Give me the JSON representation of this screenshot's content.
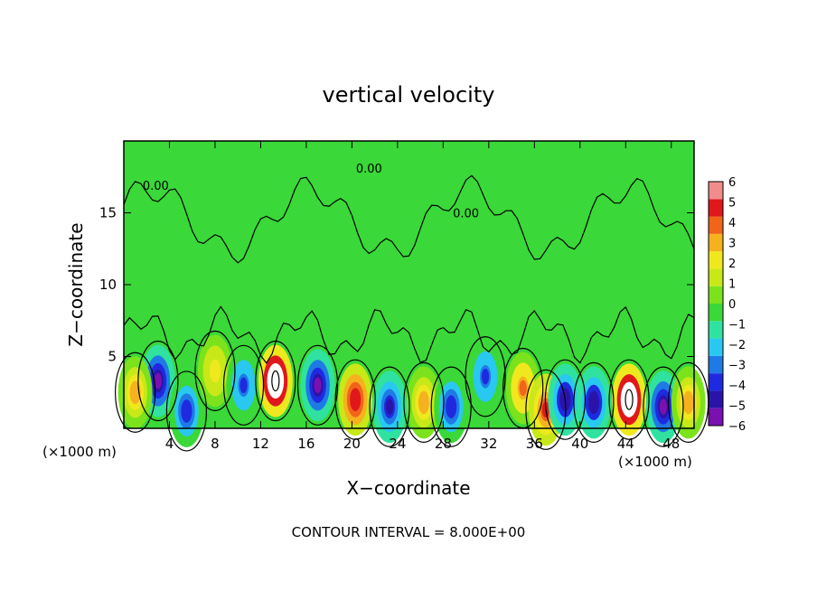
{
  "chart_data": {
    "type": "heatmap",
    "title": "vertical velocity",
    "xlabel": "X−coordinate",
    "ylabel": "Z−coordinate",
    "x_unit": "(×1000 m)",
    "y_unit": "(×1000 m)",
    "xlim": [
      0,
      50
    ],
    "ylim": [
      0,
      20
    ],
    "x_ticks": [
      4,
      8,
      12,
      16,
      20,
      24,
      28,
      32,
      36,
      40,
      44,
      48
    ],
    "y_ticks": [
      5,
      10,
      15
    ],
    "x_tick_labels": [
      "4",
      "8",
      "12",
      "16",
      "20",
      "24",
      "28",
      "32",
      "36",
      "40",
      "44",
      "48"
    ],
    "y_tick_labels": [
      "5",
      "10",
      "15"
    ],
    "colorbar": {
      "min": -6,
      "max": 6,
      "tick_values": [
        6,
        5,
        4,
        3,
        2,
        1,
        0,
        -1,
        -2,
        -3,
        -4,
        -5,
        -6
      ],
      "tick_labels": [
        "6",
        "5",
        "4",
        "3",
        "2",
        "1",
        "0",
        "−1",
        "−2",
        "−3",
        "−4",
        "−5",
        "−6"
      ],
      "colors": [
        "#7a10b0",
        "#2a14a8",
        "#1f2ae0",
        "#1f7ae6",
        "#29c8f0",
        "#2fe2a0",
        "#3ad838",
        "#7be21c",
        "#c8e818",
        "#f0e81e",
        "#f5b21e",
        "#f0651a",
        "#e0181c",
        "#f08c8c"
      ]
    },
    "contour_label": "0.00",
    "contour_interval_text": "CONTOUR INTERVAL = 8.000E+00",
    "features": [
      {
        "x": 3.0,
        "z": 3.3,
        "w": -5.5
      },
      {
        "x": 5.5,
        "z": 1.2,
        "w": -4.0
      },
      {
        "x": 1.0,
        "z": 2.5,
        "w": 3.0
      },
      {
        "x": 8.0,
        "z": 4.0,
        "w": 2.0
      },
      {
        "x": 10.5,
        "z": 3.0,
        "w": -3.5
      },
      {
        "x": 13.3,
        "z": 3.3,
        "w": 8.5
      },
      {
        "x": 17.0,
        "z": 3.0,
        "w": -5.5
      },
      {
        "x": 20.3,
        "z": 2.0,
        "w": 5.0
      },
      {
        "x": 23.3,
        "z": 1.5,
        "w": -4.5
      },
      {
        "x": 26.3,
        "z": 1.8,
        "w": 3.0
      },
      {
        "x": 28.7,
        "z": 1.5,
        "w": -4.0
      },
      {
        "x": 31.7,
        "z": 3.6,
        "w": -3.5
      },
      {
        "x": 35.0,
        "z": 2.8,
        "w": 3.5
      },
      {
        "x": 37.0,
        "z": 1.3,
        "w": 4.5
      },
      {
        "x": 38.7,
        "z": 2.0,
        "w": -5.0
      },
      {
        "x": 41.2,
        "z": 1.8,
        "w": -5.0
      },
      {
        "x": 44.3,
        "z": 2.0,
        "w": 8.5
      },
      {
        "x": 47.3,
        "z": 1.5,
        "w": -5.5
      },
      {
        "x": 49.5,
        "z": 1.8,
        "w": 3.0
      }
    ]
  }
}
